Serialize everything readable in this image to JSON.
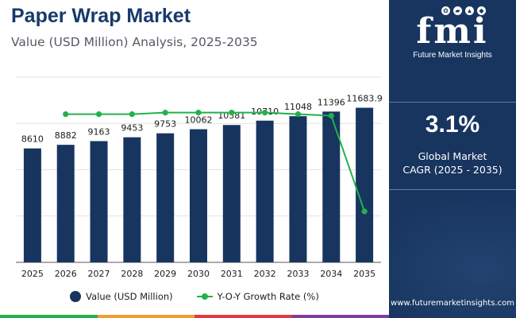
{
  "header": {
    "title": "Paper Wrap Market",
    "subtitle": "Value (USD Million) Analysis, 2025-2035"
  },
  "colors": {
    "bar": "#17355f",
    "line": "#22b14c",
    "title": "#173a6b",
    "panel": "#17355f",
    "strip": [
      "#22b14c",
      "#f0a030",
      "#e0393e",
      "#7b3fa0"
    ]
  },
  "chart_data": {
    "type": "bar",
    "title": "Paper Wrap Market",
    "subtitle": "Value (USD Million) Analysis, 2025-2035",
    "categories": [
      "2025",
      "2026",
      "2027",
      "2028",
      "2029",
      "2030",
      "2031",
      "2032",
      "2033",
      "2034",
      "2035"
    ],
    "series": [
      {
        "name": "Value (USD Million)",
        "type": "bar",
        "values": [
          8610,
          8882,
          9163,
          9453,
          9753,
          10062,
          10381,
          10710,
          11048,
          11396,
          11683.9
        ],
        "labels": [
          "8610",
          "8882",
          "9163",
          "9453",
          "9753",
          "10062",
          "10381",
          "10710",
          "11048",
          "11396",
          "11683.9"
        ]
      },
      {
        "name": "Y-O-Y Growth Rate (%)",
        "type": "line",
        "values": [
          null,
          3.16,
          3.16,
          3.16,
          3.17,
          3.17,
          3.17,
          3.17,
          3.16,
          3.15,
          2.53
        ]
      }
    ],
    "ylim": [
      0,
      14000
    ],
    "y2lim": [
      2.2,
      3.4
    ],
    "grid": true,
    "legend": "bottom-center"
  },
  "legend": {
    "bar_label": "Value (USD Million)",
    "line_label": "Y-O-Y Growth Rate (%)"
  },
  "panel": {
    "logo_text": "fmi",
    "logo_subtitle": "Future Market Insights",
    "logo_icons": [
      "leaf-icon",
      "car-icon",
      "flask-icon",
      "chip-icon"
    ],
    "cagr_value": "3.1%",
    "cagr_label_line1": "Global Market",
    "cagr_label_line2": "CAGR (2025 - 2035)",
    "website": "www.futuremarketinsights.com"
  }
}
